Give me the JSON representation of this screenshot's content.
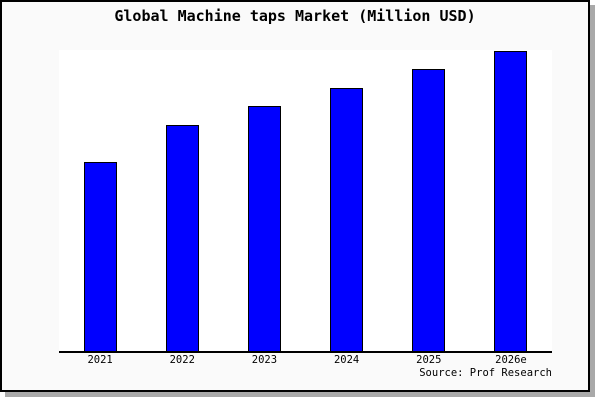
{
  "figure": {
    "source": "Source: Prof Research"
  },
  "chart_data": {
    "type": "bar",
    "title": "Global Machine taps Market (Million USD)",
    "categories": [
      "2021",
      "2022",
      "2023",
      "2024",
      "2025",
      "2026e"
    ],
    "values": [
      189,
      226,
      245,
      263,
      282,
      300
    ],
    "value_note": "y-axis has no tick labels or gridlines; values are relative units proportional to measured bar heights",
    "xlabel": "",
    "ylabel": "",
    "ylim": [
      0,
      301
    ],
    "grid": false,
    "legend": false,
    "colors": {
      "bar_fill": "#0000ff",
      "bar_border": "#000000",
      "plot_background": "#ffffff",
      "page_background": "#fafafa",
      "frame_border": "#000000",
      "shadow": "#a9a9a9",
      "text": "#000000"
    }
  }
}
